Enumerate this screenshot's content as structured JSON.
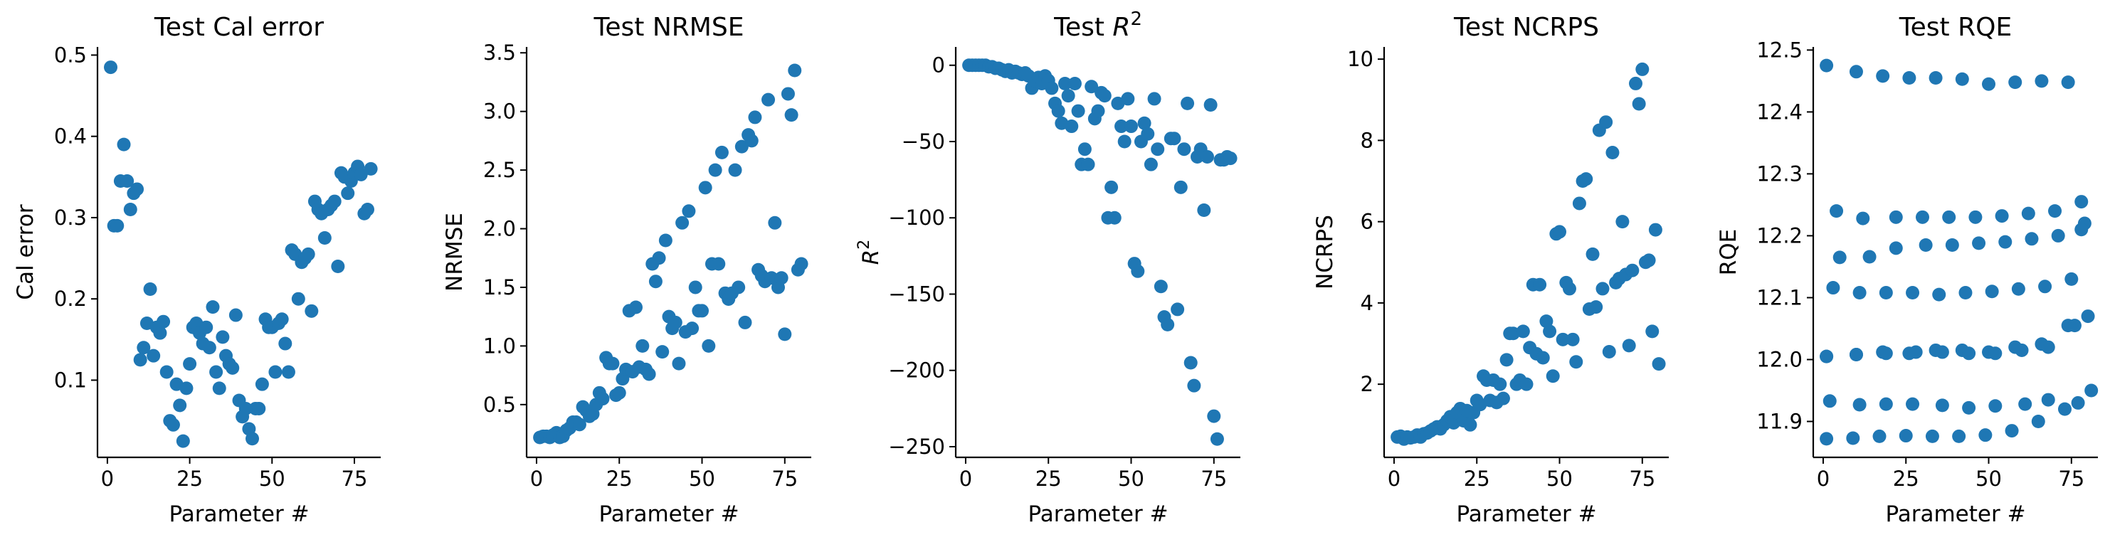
{
  "chart_data": [
    {
      "type": "scatter",
      "title": "Test Cal error",
      "xlabel": "Parameter #",
      "ylabel": "Cal error",
      "xlim": [
        -3,
        83
      ],
      "ylim": [
        0.005,
        0.51
      ],
      "xticks": [
        0,
        25,
        50,
        75
      ],
      "yticks": [
        0.1,
        0.2,
        0.3,
        0.4,
        0.5
      ],
      "yticklabels": [
        "0.1",
        "0.2",
        "0.3",
        "0.4",
        "0.5"
      ],
      "color": "#1f77b4",
      "x": [
        1,
        2,
        3,
        4,
        5,
        6,
        7,
        8,
        9,
        10,
        11,
        12,
        13,
        14,
        15,
        16,
        17,
        18,
        19,
        20,
        21,
        22,
        23,
        24,
        25,
        26,
        27,
        28,
        29,
        30,
        31,
        32,
        33,
        34,
        35,
        36,
        37,
        38,
        39,
        40,
        41,
        42,
        43,
        44,
        45,
        46,
        47,
        48,
        49,
        50,
        51,
        52,
        53,
        54,
        55,
        56,
        57,
        58,
        59,
        60,
        61,
        62,
        63,
        64,
        65,
        66,
        67,
        68,
        69,
        70,
        71,
        72,
        73,
        74,
        75,
        76,
        77,
        78,
        79,
        80
      ],
      "y": [
        0.485,
        0.29,
        0.29,
        0.345,
        0.39,
        0.345,
        0.31,
        0.33,
        0.335,
        0.125,
        0.14,
        0.17,
        0.212,
        0.13,
        0.165,
        0.158,
        0.172,
        0.11,
        0.05,
        0.045,
        0.095,
        0.069,
        0.025,
        0.09,
        0.12,
        0.165,
        0.17,
        0.158,
        0.145,
        0.165,
        0.14,
        0.19,
        0.11,
        0.09,
        0.153,
        0.13,
        0.12,
        0.115,
        0.18,
        0.075,
        0.055,
        0.065,
        0.04,
        0.028,
        0.065,
        0.065,
        0.095,
        0.175,
        0.165,
        0.165,
        0.11,
        0.17,
        0.175,
        0.145,
        0.11,
        0.26,
        0.255,
        0.2,
        0.245,
        0.25,
        0.255,
        0.185,
        0.32,
        0.31,
        0.305,
        0.275,
        0.31,
        0.315,
        0.32,
        0.24,
        0.355,
        0.35,
        0.33,
        0.345,
        0.355,
        0.363,
        0.353,
        0.305,
        0.31,
        0.36
      ]
    },
    {
      "type": "scatter",
      "title": "Test NRMSE",
      "xlabel": "Parameter #",
      "ylabel": "NRMSE",
      "xlim": [
        -3,
        83
      ],
      "ylim": [
        0.05,
        3.55
      ],
      "xticks": [
        0,
        25,
        50,
        75
      ],
      "yticks": [
        0.5,
        1.0,
        1.5,
        2.0,
        2.5,
        3.0,
        3.5
      ],
      "yticklabels": [
        "0.5",
        "1.0",
        "1.5",
        "2.0",
        "2.5",
        "3.0",
        "3.5"
      ],
      "color": "#1f77b4",
      "x": [
        1,
        2,
        3,
        4,
        5,
        6,
        7,
        8,
        9,
        10,
        11,
        12,
        13,
        14,
        15,
        16,
        17,
        18,
        19,
        20,
        21,
        22,
        23,
        24,
        25,
        26,
        27,
        28,
        29,
        30,
        31,
        32,
        33,
        34,
        35,
        36,
        37,
        38,
        39,
        40,
        41,
        42,
        43,
        44,
        45,
        46,
        47,
        48,
        49,
        50,
        51,
        52,
        53,
        54,
        55,
        56,
        57,
        58,
        59,
        60,
        61,
        62,
        63,
        64,
        65,
        66,
        67,
        68,
        69,
        70,
        71,
        72,
        73,
        74,
        75,
        76,
        77,
        78,
        79,
        80
      ],
      "y": [
        0.22,
        0.23,
        0.23,
        0.22,
        0.24,
        0.26,
        0.22,
        0.23,
        0.28,
        0.3,
        0.35,
        0.35,
        0.33,
        0.48,
        0.45,
        0.4,
        0.42,
        0.5,
        0.6,
        0.55,
        0.9,
        0.85,
        0.85,
        0.58,
        0.6,
        0.72,
        0.8,
        1.3,
        0.78,
        1.33,
        0.82,
        1.0,
        0.8,
        0.76,
        1.7,
        1.55,
        1.75,
        0.95,
        1.9,
        1.25,
        1.15,
        1.2,
        0.85,
        2.05,
        1.12,
        2.15,
        1.15,
        1.5,
        1.3,
        1.3,
        2.35,
        1.0,
        1.7,
        2.5,
        1.7,
        2.65,
        1.45,
        1.4,
        1.45,
        2.5,
        1.5,
        2.7,
        1.2,
        2.8,
        2.75,
        2.95,
        1.65,
        1.6,
        1.55,
        3.1,
        1.58,
        2.05,
        1.5,
        1.58,
        1.1,
        3.15,
        2.97,
        3.35,
        1.65,
        1.7
      ]
    },
    {
      "type": "scatter",
      "title": "Test R^2",
      "xlabel": "Parameter #",
      "ylabel": "R^2",
      "xlim": [
        -3,
        83
      ],
      "ylim": [
        -257,
        12
      ],
      "xticks": [
        0,
        25,
        50,
        75
      ],
      "yticks": [
        0,
        -50,
        -100,
        -150,
        -200,
        -250
      ],
      "yticklabels": [
        "0",
        "−50",
        "−100",
        "−150",
        "−200",
        "−250"
      ],
      "color": "#1f77b4",
      "x": [
        1,
        2,
        3,
        4,
        5,
        6,
        7,
        8,
        9,
        10,
        11,
        12,
        13,
        14,
        15,
        16,
        17,
        18,
        19,
        20,
        21,
        22,
        23,
        24,
        25,
        26,
        27,
        28,
        29,
        30,
        31,
        32,
        33,
        34,
        35,
        36,
        37,
        38,
        39,
        40,
        41,
        42,
        43,
        44,
        45,
        46,
        47,
        48,
        49,
        50,
        51,
        52,
        53,
        54,
        55,
        56,
        57,
        58,
        59,
        60,
        61,
        62,
        63,
        64,
        65,
        66,
        67,
        68,
        69,
        70,
        71,
        72,
        73,
        74,
        75,
        76,
        77,
        78,
        79,
        80
      ],
      "y": [
        0,
        0,
        0,
        0,
        0,
        0,
        -1,
        -1,
        -2,
        -2,
        -3,
        -4,
        -3,
        -5,
        -4,
        -5,
        -6,
        -5,
        -7,
        -15,
        -10,
        -8,
        -12,
        -7,
        -10,
        -15,
        -25,
        -30,
        -38,
        -12,
        -20,
        -40,
        -12,
        -30,
        -65,
        -55,
        -65,
        -14,
        -35,
        -30,
        -18,
        -20,
        -100,
        -80,
        -100,
        -25,
        -40,
        -50,
        -22,
        -40,
        -130,
        -135,
        -50,
        -38,
        -45,
        -65,
        -22,
        -55,
        -145,
        -165,
        -170,
        -48,
        -48,
        -160,
        -80,
        -55,
        -25,
        -195,
        -210,
        -60,
        -55,
        -95,
        -60,
        -26,
        -230,
        -245,
        -62,
        -62,
        -60,
        -61
      ]
    },
    {
      "type": "scatter",
      "title": "Test NCRPS",
      "xlabel": "Parameter #",
      "ylabel": "NCRPS",
      "xlim": [
        -3,
        83
      ],
      "ylim": [
        0.2,
        10.3
      ],
      "xticks": [
        0,
        25,
        50,
        75
      ],
      "yticks": [
        2,
        4,
        6,
        8,
        10
      ],
      "yticklabels": [
        "2",
        "4",
        "6",
        "8",
        "10"
      ],
      "color": "#1f77b4",
      "x": [
        1,
        2,
        3,
        4,
        5,
        6,
        7,
        8,
        9,
        10,
        11,
        12,
        13,
        14,
        15,
        16,
        17,
        18,
        19,
        20,
        21,
        22,
        23,
        24,
        25,
        26,
        27,
        28,
        29,
        30,
        31,
        32,
        33,
        34,
        35,
        36,
        37,
        38,
        39,
        40,
        41,
        42,
        43,
        44,
        45,
        46,
        47,
        48,
        49,
        50,
        51,
        52,
        53,
        54,
        55,
        56,
        57,
        58,
        59,
        60,
        61,
        62,
        63,
        64,
        65,
        66,
        67,
        68,
        69,
        70,
        71,
        72,
        73,
        74,
        75,
        76,
        77,
        78,
        79,
        80
      ],
      "y": [
        0.7,
        0.72,
        0.65,
        0.7,
        0.68,
        0.7,
        0.75,
        0.7,
        0.78,
        0.8,
        0.85,
        0.9,
        0.95,
        0.9,
        1.0,
        1.1,
        1.2,
        1.05,
        1.3,
        1.4,
        1.1,
        1.35,
        1.0,
        1.3,
        1.6,
        1.5,
        2.2,
        2.1,
        1.6,
        2.1,
        1.55,
        2.0,
        1.65,
        2.6,
        3.25,
        3.25,
        2.0,
        2.1,
        3.3,
        2.0,
        2.9,
        4.45,
        2.75,
        4.45,
        2.65,
        3.55,
        3.3,
        2.2,
        5.7,
        5.75,
        3.1,
        4.5,
        4.35,
        3.1,
        2.55,
        6.45,
        7.0,
        7.05,
        3.85,
        5.2,
        3.9,
        8.25,
        4.35,
        8.45,
        2.8,
        7.7,
        4.5,
        4.6,
        6.0,
        4.7,
        2.95,
        4.8,
        9.4,
        8.9,
        9.75,
        5.0,
        5.05,
        3.3,
        5.8,
        2.5
      ]
    },
    {
      "type": "scatter",
      "title": "Test RQE",
      "xlabel": "Parameter #",
      "ylabel": "RQE",
      "xlim": [
        -3,
        83
      ],
      "ylim": [
        11.842,
        12.505
      ],
      "xticks": [
        0,
        25,
        50,
        75
      ],
      "yticks": [
        11.9,
        12.0,
        12.1,
        12.2,
        12.3,
        12.4,
        12.5
      ],
      "yticklabels": [
        "11.9",
        "12.0",
        "12.1",
        "12.2",
        "12.3",
        "12.4",
        "12.5"
      ],
      "color": "#1f77b4",
      "x": [
        1,
        10,
        18,
        26,
        34,
        42,
        50,
        58,
        66,
        74,
        1,
        10,
        18,
        26,
        34,
        42,
        50,
        58,
        66,
        74,
        80,
        4,
        12,
        22,
        30,
        38,
        46,
        54,
        62,
        70,
        78,
        3,
        11,
        19,
        27,
        35,
        43,
        51,
        59,
        67,
        75,
        79,
        1,
        9,
        17,
        25,
        33,
        41,
        49,
        57,
        65,
        73,
        81,
        1,
        10,
        19,
        28,
        36,
        44,
        52,
        60,
        68,
        76,
        2,
        11,
        19,
        27,
        36,
        44,
        52,
        61,
        68,
        77,
        5,
        14,
        22,
        31,
        39,
        47,
        55,
        63,
        71,
        78
      ],
      "y": [
        12.475,
        12.465,
        12.458,
        12.455,
        12.455,
        12.453,
        12.445,
        12.448,
        12.45,
        12.448,
        12.005,
        12.008,
        12.012,
        12.01,
        12.015,
        12.015,
        12.012,
        12.02,
        12.025,
        12.055,
        12.07,
        12.24,
        12.228,
        12.23,
        12.23,
        12.23,
        12.23,
        12.232,
        12.236,
        12.24,
        12.255,
        12.116,
        12.108,
        12.108,
        12.108,
        12.105,
        12.108,
        12.11,
        12.114,
        12.118,
        12.13,
        12.22,
        11.872,
        11.873,
        11.876,
        11.877,
        11.876,
        11.876,
        11.878,
        11.885,
        11.9,
        11.92,
        11.95,
        12.005,
        12.008,
        12.01,
        12.012,
        12.012,
        12.01,
        12.01,
        12.015,
        12.02,
        12.055,
        11.933,
        11.927,
        11.928,
        11.928,
        11.926,
        11.922,
        11.925,
        11.928,
        11.935,
        11.93,
        12.165,
        12.166,
        12.18,
        12.185,
        12.185,
        12.188,
        12.19,
        12.195,
        12.2,
        12.21
      ]
    }
  ]
}
